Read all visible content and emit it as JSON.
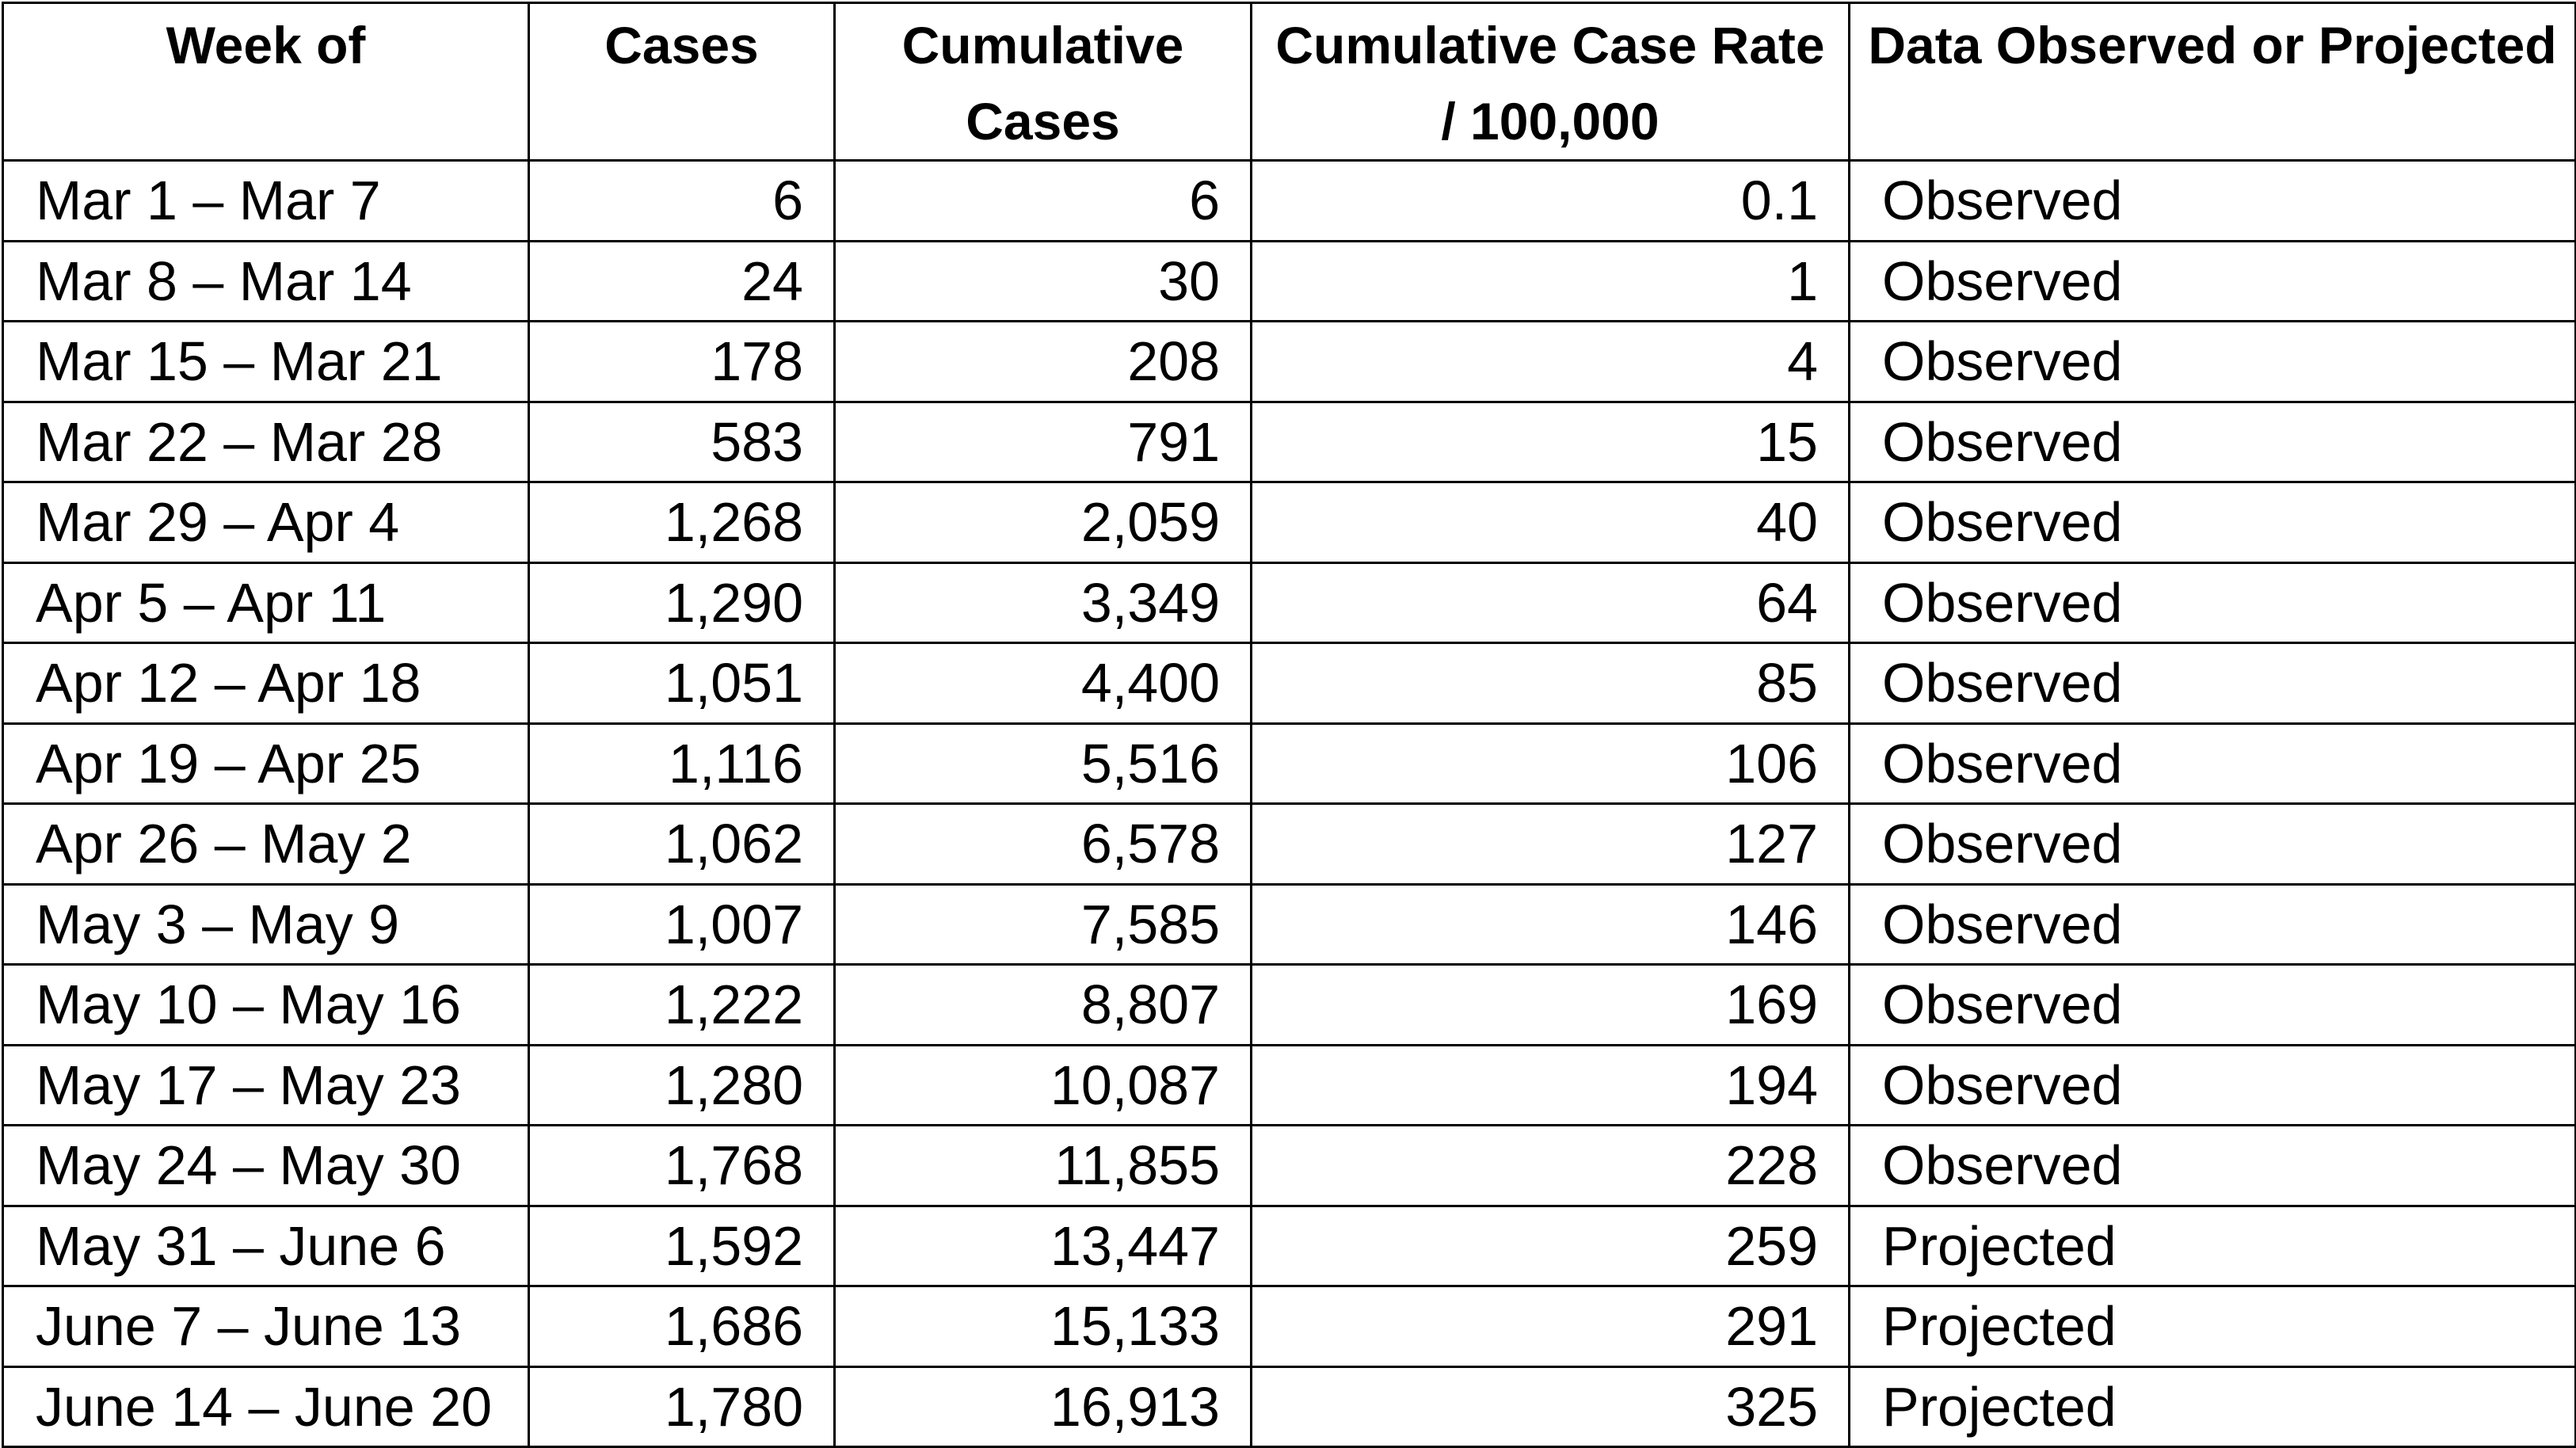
{
  "table": {
    "headers": [
      "Week of",
      "Cases",
      "Cumulative Cases",
      "Cumulative Case Rate / 100,000",
      "Data Observed or Projected"
    ],
    "rows": [
      {
        "week": "Mar 1 – Mar 7",
        "cases": "6",
        "cumulative": "6",
        "rate": "0.1",
        "status": "Observed"
      },
      {
        "week": "Mar 8 – Mar 14",
        "cases": "24",
        "cumulative": "30",
        "rate": "1",
        "status": "Observed"
      },
      {
        "week": "Mar 15 – Mar 21",
        "cases": "178",
        "cumulative": "208",
        "rate": "4",
        "status": "Observed"
      },
      {
        "week": "Mar 22 – Mar 28",
        "cases": "583",
        "cumulative": "791",
        "rate": "15",
        "status": "Observed"
      },
      {
        "week": "Mar 29 – Apr 4",
        "cases": "1,268",
        "cumulative": "2,059",
        "rate": "40",
        "status": "Observed"
      },
      {
        "week": "Apr 5 – Apr 11",
        "cases": "1,290",
        "cumulative": "3,349",
        "rate": "64",
        "status": "Observed"
      },
      {
        "week": "Apr 12 – Apr 18",
        "cases": "1,051",
        "cumulative": "4,400",
        "rate": "85",
        "status": "Observed"
      },
      {
        "week": "Apr 19 – Apr 25",
        "cases": "1,116",
        "cumulative": "5,516",
        "rate": "106",
        "status": "Observed"
      },
      {
        "week": "Apr 26 – May 2",
        "cases": "1,062",
        "cumulative": "6,578",
        "rate": "127",
        "status": "Observed"
      },
      {
        "week": "May 3 – May 9",
        "cases": "1,007",
        "cumulative": "7,585",
        "rate": "146",
        "status": "Observed"
      },
      {
        "week": "May 10 – May 16",
        "cases": "1,222",
        "cumulative": "8,807",
        "rate": "169",
        "status": "Observed"
      },
      {
        "week": "May 17 – May 23",
        "cases": "1,280",
        "cumulative": "10,087",
        "rate": "194",
        "status": "Observed"
      },
      {
        "week": "May 24 – May 30",
        "cases": "1,768",
        "cumulative": "11,855",
        "rate": "228",
        "status": "Observed"
      },
      {
        "week": "May 31 – June 6",
        "cases": "1,592",
        "cumulative": "13,447",
        "rate": "259",
        "status": "Projected"
      },
      {
        "week": "June 7 – June 13",
        "cases": "1,686",
        "cumulative": "15,133",
        "rate": "291",
        "status": "Projected"
      },
      {
        "week": "June 14 – June 20",
        "cases": "1,780",
        "cumulative": "16,913",
        "rate": "325",
        "status": "Projected"
      }
    ]
  }
}
